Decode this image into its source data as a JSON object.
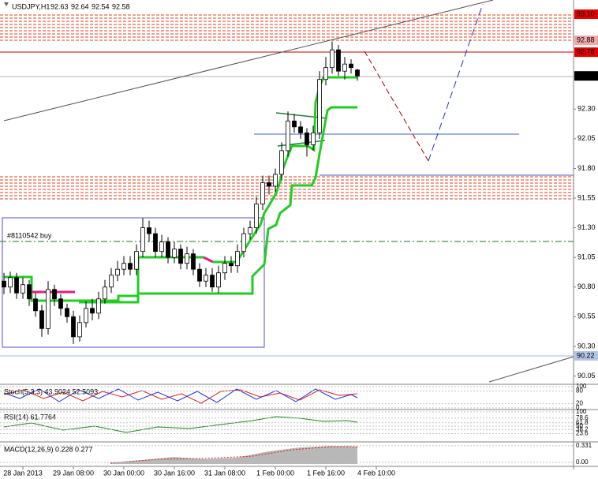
{
  "header": {
    "symbol": "USDJPY,H1",
    "ohlc": [
      92.63,
      92.64,
      92.54,
      92.58
    ]
  },
  "chart_data": {
    "type": "candlestick",
    "x": [
      0,
      2,
      4,
      6,
      8,
      10,
      12,
      14,
      16,
      18,
      20,
      22,
      24,
      26,
      28,
      30,
      32,
      34,
      36,
      38,
      40,
      42,
      44,
      46,
      48,
      50,
      52,
      54,
      56,
      58,
      60,
      62,
      64,
      66,
      68,
      70,
      72,
      74,
      76,
      78,
      80,
      82,
      84,
      86,
      88,
      90,
      92,
      94,
      96,
      98,
      100,
      102,
      104,
      106,
      108,
      110,
      112
    ],
    "open": [
      90.85,
      90.8,
      90.88,
      90.75,
      90.82,
      90.7,
      90.6,
      90.45,
      90.78,
      90.7,
      90.62,
      90.55,
      90.38,
      90.5,
      90.62,
      90.58,
      90.7,
      90.8,
      90.9,
      90.95,
      91.0,
      90.95,
      91.1,
      91.3,
      91.25,
      91.1,
      91.18,
      91.05,
      91.12,
      91.0,
      91.08,
      90.95,
      90.85,
      90.9,
      90.8,
      90.92,
      91.0,
      90.98,
      91.1,
      91.25,
      91.3,
      91.5,
      91.68,
      91.65,
      91.75,
      91.95,
      92.2,
      92.15,
      92.1,
      92.0,
      92.1,
      92.55,
      92.65,
      92.8,
      92.62,
      92.68,
      92.63
    ],
    "high": [
      90.92,
      90.93,
      90.92,
      90.88,
      90.86,
      90.75,
      90.65,
      90.85,
      90.82,
      90.74,
      90.66,
      90.6,
      90.56,
      90.68,
      90.7,
      90.76,
      90.86,
      90.96,
      91.02,
      91.06,
      91.06,
      91.16,
      91.38,
      91.36,
      91.3,
      91.24,
      91.22,
      91.18,
      91.16,
      91.14,
      91.12,
      91.0,
      90.96,
      90.96,
      90.98,
      91.06,
      91.06,
      91.16,
      91.3,
      91.36,
      91.56,
      91.74,
      91.74,
      91.8,
      92.02,
      92.28,
      92.26,
      92.2,
      92.14,
      92.16,
      92.62,
      92.74,
      92.87,
      92.84,
      92.74,
      92.72,
      92.64
    ],
    "low": [
      90.74,
      90.75,
      90.7,
      90.7,
      90.64,
      90.55,
      90.38,
      90.4,
      90.64,
      90.56,
      90.5,
      90.32,
      90.34,
      90.46,
      90.52,
      90.53,
      90.66,
      90.75,
      90.85,
      90.9,
      90.9,
      90.9,
      91.05,
      91.18,
      91.05,
      91.05,
      91.0,
      91.0,
      90.95,
      90.95,
      90.9,
      90.8,
      90.8,
      90.76,
      90.75,
      90.86,
      90.92,
      90.92,
      91.05,
      91.2,
      91.25,
      91.45,
      91.58,
      91.6,
      91.7,
      91.9,
      92.1,
      92.05,
      91.9,
      91.95,
      92.05,
      92.5,
      92.6,
      92.58,
      92.55,
      92.6,
      92.54
    ],
    "close": [
      90.8,
      90.88,
      90.75,
      90.82,
      90.7,
      90.6,
      90.45,
      90.78,
      90.7,
      90.62,
      90.55,
      90.38,
      90.5,
      90.62,
      90.58,
      90.7,
      90.8,
      90.9,
      90.95,
      91.0,
      90.95,
      91.1,
      91.3,
      91.25,
      91.1,
      91.18,
      91.05,
      91.12,
      91.0,
      91.08,
      90.95,
      90.85,
      90.9,
      90.8,
      90.92,
      91.0,
      90.98,
      91.1,
      91.25,
      91.3,
      91.5,
      91.68,
      91.65,
      91.75,
      91.95,
      92.2,
      92.15,
      92.1,
      92.0,
      92.1,
      92.55,
      92.65,
      92.8,
      92.62,
      92.68,
      92.65,
      92.58
    ],
    "up_color": "#ffffff",
    "down_color": "#000000",
    "wick_color": "#000000",
    "xlim": [
      -1.25,
      180.5
    ],
    "xticks": [
      {
        "value": 6,
        "label": "28 Jan 2013"
      },
      {
        "value": 22,
        "label": "29 Jan 08:00"
      },
      {
        "value": 38,
        "label": "30 Jan 00:00"
      },
      {
        "value": 54,
        "label": "30 Jan 16:00"
      },
      {
        "value": 70,
        "label": "31 Jan 08:00"
      },
      {
        "value": 86,
        "label": "1 Feb 00:00"
      },
      {
        "value": 102,
        "label": "1 Feb 16:00"
      },
      {
        "value": 118,
        "label": "4 Feb 10:00"
      }
    ],
    "ylim": [
      89.98,
      93.22
    ],
    "yticks": [
      90.05,
      {
        "value": 90.3,
        "label": "90.30"
      },
      90.55,
      {
        "value": 90.8,
        "label": "90.80"
      },
      91.05,
      {
        "value": 91.3,
        "label": "91.30"
      },
      91.55,
      {
        "value": 91.8,
        "label": "91.80"
      },
      92.05,
      {
        "value": 92.3,
        "label": "92.30"
      }
    ],
    "price_labels": [
      {
        "value": 93.1,
        "label": "93.10",
        "color": "#e00000"
      },
      {
        "value": 92.88,
        "label": "92.88",
        "color": "#f2a8a8"
      },
      {
        "value": 92.78,
        "label": "92.78",
        "color": "#e00000"
      },
      {
        "value": 92.58,
        "label": "92.58",
        "color": "#000000"
      },
      {
        "value": 90.22,
        "label": "90.22",
        "color": "#b4c4e4"
      }
    ],
    "order_label": "#8110542 buy"
  },
  "indicators": [
    {
      "title": "Stoch(5,3,3) 43.9024 52.5093",
      "ylim": [
        0,
        100
      ],
      "yticks": [
        100,
        80,
        20,
        0
      ]
    },
    {
      "title": "RSI(14) 61.7764",
      "ylim": [
        0,
        100
      ],
      "yticks": [
        100,
        78.6,
        61.8,
        50,
        38.2,
        23.6
      ]
    },
    {
      "title": "MACD(12,26,9) 0.228 0.277",
      "ylim": [
        -0.05,
        0.36
      ],
      "yticks": [
        0.331,
        {
          "value": 0,
          "label": "0.00"
        }
      ]
    }
  ]
}
